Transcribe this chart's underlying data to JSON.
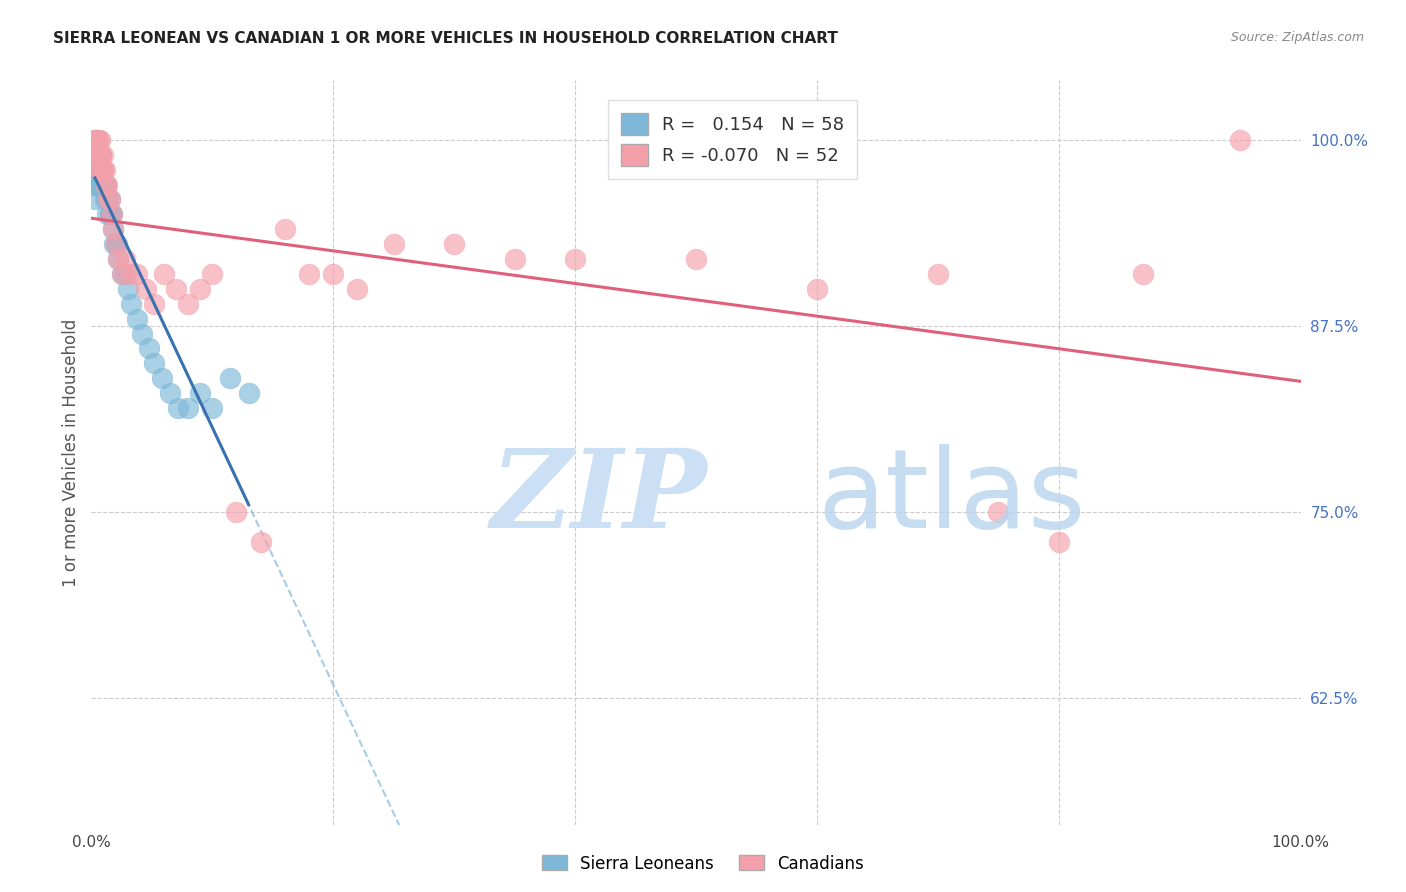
{
  "title": "SIERRA LEONEAN VS CANADIAN 1 OR MORE VEHICLES IN HOUSEHOLD CORRELATION CHART",
  "source": "Source: ZipAtlas.com",
  "ylabel": "1 or more Vehicles in Household",
  "xlim": [
    0.0,
    1.0
  ],
  "ylim": [
    0.54,
    1.04
  ],
  "yticks": [
    0.625,
    0.75,
    0.875,
    1.0
  ],
  "ytick_labels": [
    "62.5%",
    "75.0%",
    "87.5%",
    "100.0%"
  ],
  "blue_color": "#7db8d8",
  "pink_color": "#f4a0aa",
  "blue_line_color": "#3a72b0",
  "pink_line_color": "#e0607a",
  "blue_dash_color": "#90c0e0",
  "tick_label_color_right": "#4472c4",
  "grid_color": "#cccccc",
  "sierra_R": 0.154,
  "sierra_N": 58,
  "canadian_R": -0.07,
  "canadian_N": 52,
  "sierra_x": [
    0.003,
    0.003,
    0.003,
    0.003,
    0.003,
    0.004,
    0.004,
    0.004,
    0.004,
    0.005,
    0.005,
    0.005,
    0.005,
    0.006,
    0.006,
    0.006,
    0.007,
    0.007,
    0.007,
    0.008,
    0.008,
    0.008,
    0.009,
    0.009,
    0.01,
    0.01,
    0.011,
    0.011,
    0.012,
    0.012,
    0.013,
    0.013,
    0.014,
    0.015,
    0.015,
    0.016,
    0.017,
    0.018,
    0.019,
    0.02,
    0.021,
    0.022,
    0.025,
    0.028,
    0.03,
    0.033,
    0.038,
    0.042,
    0.048,
    0.052,
    0.058,
    0.065,
    0.072,
    0.08,
    0.09,
    0.1,
    0.115,
    0.13
  ],
  "sierra_y": [
    1.0,
    0.99,
    0.98,
    0.97,
    0.96,
    1.0,
    0.99,
    0.98,
    0.97,
    1.0,
    0.99,
    0.98,
    0.97,
    0.99,
    0.98,
    0.97,
    0.99,
    0.98,
    0.97,
    0.99,
    0.98,
    0.97,
    0.98,
    0.97,
    0.98,
    0.97,
    0.97,
    0.96,
    0.97,
    0.96,
    0.96,
    0.95,
    0.96,
    0.96,
    0.95,
    0.95,
    0.95,
    0.94,
    0.93,
    0.93,
    0.93,
    0.92,
    0.91,
    0.91,
    0.9,
    0.89,
    0.88,
    0.87,
    0.86,
    0.85,
    0.84,
    0.83,
    0.82,
    0.82,
    0.83,
    0.82,
    0.84,
    0.83
  ],
  "canadian_x": [
    0.003,
    0.004,
    0.004,
    0.005,
    0.005,
    0.006,
    0.006,
    0.007,
    0.007,
    0.007,
    0.008,
    0.008,
    0.009,
    0.01,
    0.01,
    0.011,
    0.012,
    0.013,
    0.014,
    0.015,
    0.017,
    0.018,
    0.02,
    0.022,
    0.025,
    0.028,
    0.032,
    0.038,
    0.045,
    0.052,
    0.06,
    0.07,
    0.08,
    0.09,
    0.1,
    0.12,
    0.14,
    0.16,
    0.18,
    0.2,
    0.22,
    0.25,
    0.3,
    0.35,
    0.4,
    0.5,
    0.6,
    0.7,
    0.75,
    0.8,
    0.87,
    0.95
  ],
  "canadian_y": [
    1.0,
    1.0,
    0.99,
    1.0,
    0.99,
    1.0,
    0.99,
    1.0,
    0.99,
    0.98,
    0.99,
    0.98,
    0.98,
    0.99,
    0.98,
    0.98,
    0.97,
    0.97,
    0.96,
    0.96,
    0.95,
    0.94,
    0.93,
    0.92,
    0.91,
    0.92,
    0.91,
    0.91,
    0.9,
    0.89,
    0.91,
    0.9,
    0.89,
    0.9,
    0.91,
    0.75,
    0.73,
    0.94,
    0.91,
    0.91,
    0.9,
    0.93,
    0.93,
    0.92,
    0.92,
    0.92,
    0.9,
    0.91,
    0.75,
    0.73,
    0.91,
    1.0
  ],
  "watermark_zip_color": "#cce0f5",
  "watermark_atlas_color": "#b8d4ee"
}
